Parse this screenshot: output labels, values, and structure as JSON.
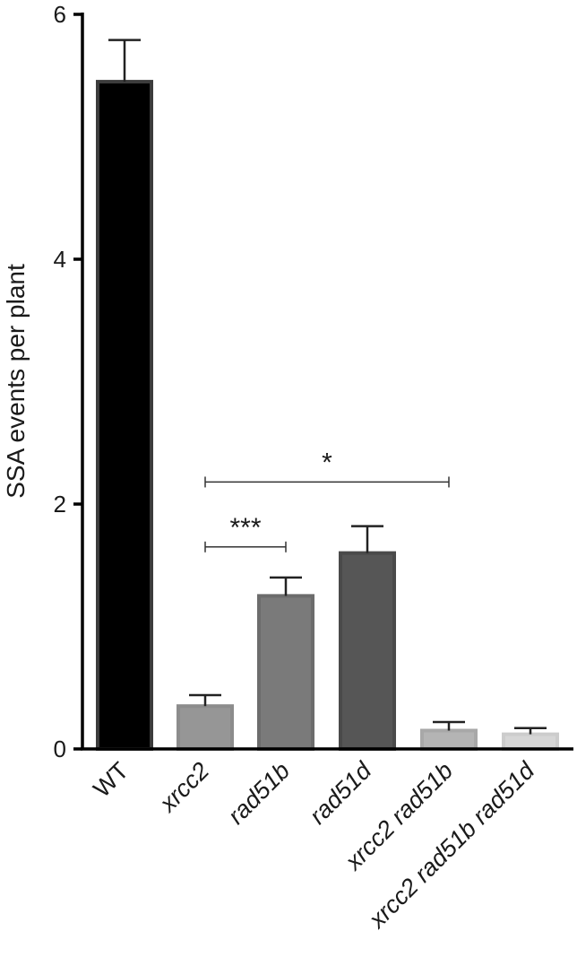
{
  "chart_data": {
    "type": "bar",
    "title": "",
    "xlabel": "",
    "ylabel": "SSA events per plant",
    "ylim": [
      0,
      6
    ],
    "yticks": [
      0,
      2,
      4,
      6
    ],
    "grid": false,
    "legend": "none",
    "categories": [
      {
        "label": "WT",
        "italic": false
      },
      {
        "label": "xrcc2",
        "italic": true
      },
      {
        "label": "rad51b",
        "italic": true
      },
      {
        "label": "rad51d",
        "italic": true
      },
      {
        "label": "xrcc2 rad51b",
        "italic": true
      },
      {
        "label": "xrcc2 rad51b rad51d",
        "italic": true
      }
    ],
    "values": [
      5.45,
      0.35,
      1.25,
      1.6,
      0.15,
      0.12
    ],
    "errors": [
      0.34,
      0.09,
      0.15,
      0.22,
      0.07,
      0.05
    ],
    "colors": [
      "#000000",
      "#969696",
      "#7a7a7a",
      "#565656",
      "#b4b4b4",
      "#d6d6d6"
    ],
    "edge_colors": [
      "#3c3c3c",
      "#8c8c8c",
      "#6c6c6c",
      "#4a4a4a",
      "#a8a8a8",
      "#cccccc"
    ],
    "significance": [
      {
        "from": 1,
        "to": 2,
        "y": 1.65,
        "label": "***"
      },
      {
        "from": 1,
        "to": 4,
        "y": 2.18,
        "label": "*"
      }
    ]
  }
}
